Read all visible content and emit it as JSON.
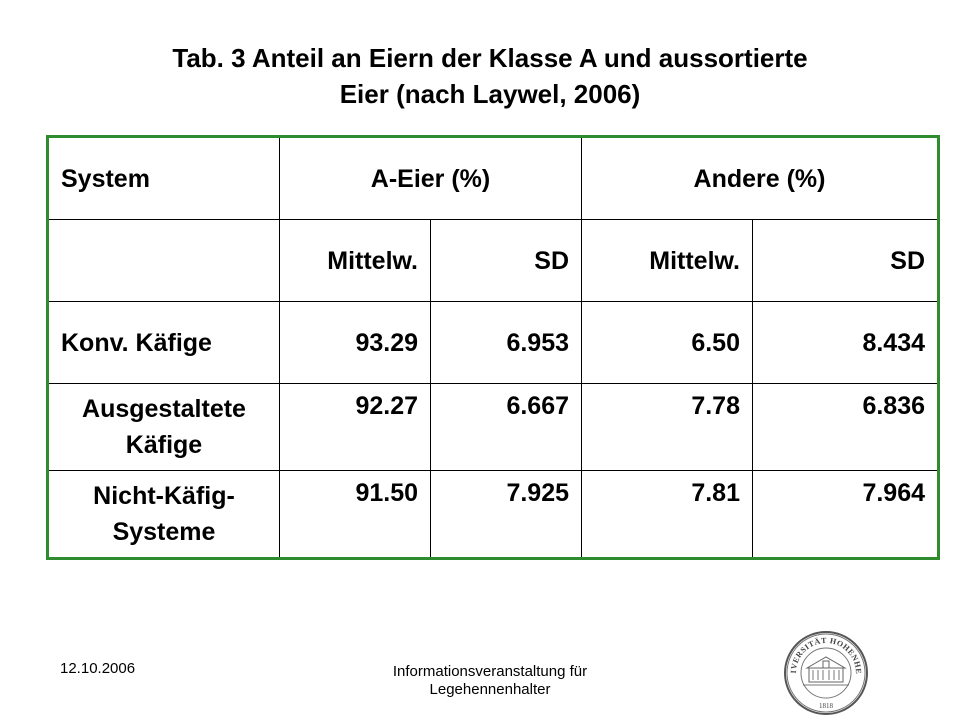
{
  "title": {
    "line1": "Tab. 3 Anteil an Eiern der Klasse A und aussortierte",
    "line2": "Eier (nach Laywel, 2006)"
  },
  "table": {
    "header1": [
      "System",
      "A-Eier (%)",
      "Andere (%)"
    ],
    "header2": [
      "",
      "Mittelw.",
      "SD",
      "Mittelw.",
      "SD"
    ],
    "rows": [
      {
        "label": [
          "Konv. Käfige"
        ],
        "values": [
          "93.29",
          "6.953",
          "6.50",
          "8.434"
        ]
      },
      {
        "label": [
          "Ausgestaltete",
          "Käfige"
        ],
        "values": [
          "92.27",
          "6.667",
          "7.78",
          "6.836"
        ]
      },
      {
        "label": [
          "Nicht-Käfig-",
          "Systeme"
        ],
        "values": [
          "91.50",
          "7.925",
          "7.81",
          "7.964"
        ]
      }
    ],
    "border_color": "#2e8b2e"
  },
  "footer": {
    "date": "12.10.2006",
    "center_line1": "Informationsveranstaltung für",
    "center_line2": "Legehennenhalter"
  },
  "logo": {
    "icon": "university-seal-icon",
    "text_top": "UNIVERSITÄT HOHENHEIM",
    "year": "1818"
  }
}
